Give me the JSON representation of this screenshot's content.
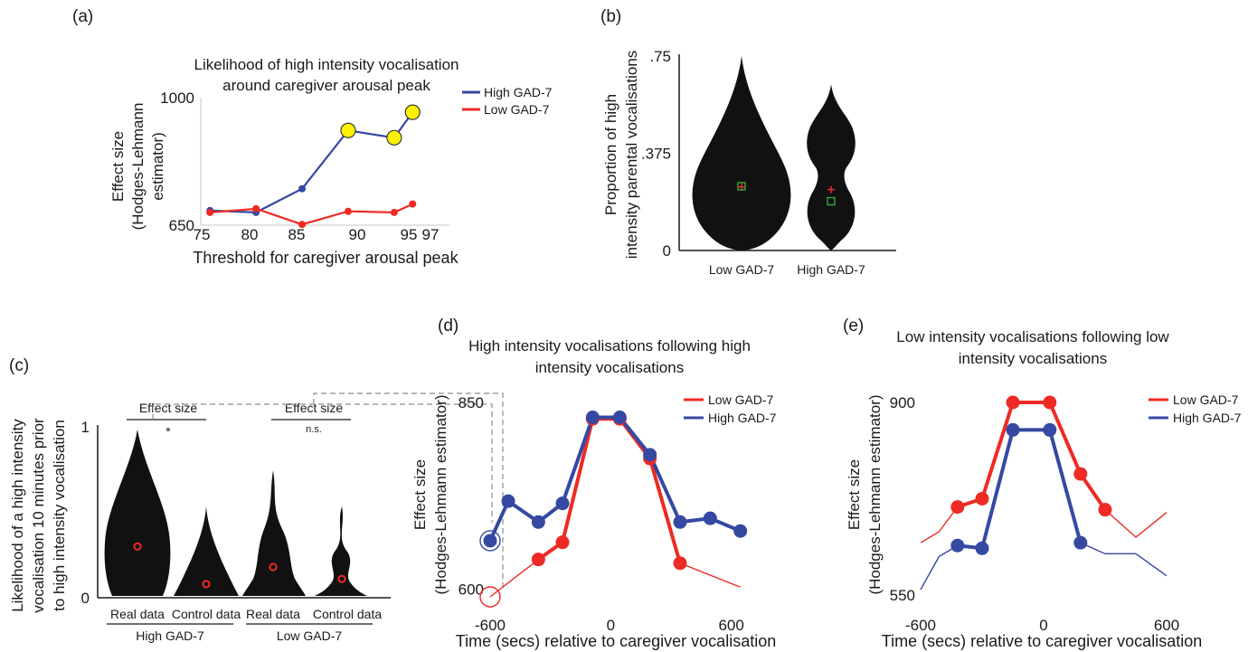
{
  "colors": {
    "red": "#ee2a24",
    "blue": "#3548a2",
    "yellow": "#fff200",
    "black": "#111111",
    "green": "#3da53b"
  },
  "chart_data": [
    {
      "panel": "(a)",
      "type": "line",
      "title": "Likelihood of high intensity vocalisation around caregiver arousal peak",
      "title_lines": [
        "Likelihood of high intensity vocalisation",
        "around caregiver arousal peak"
      ],
      "xlabel": "Threshold for caregiver arousal peak",
      "ylabel": "Effect size (Hodges-Lehmann estimator)",
      "ylabel_lines": [
        "Effect size",
        "(Hodges-Lehmann",
        "estimator)"
      ],
      "xticks": [
        75,
        80,
        85,
        90,
        95,
        97
      ],
      "yticks": [
        650,
        1000
      ],
      "xlim": [
        74,
        101
      ],
      "ylim": [
        650,
        1000
      ],
      "legend_position": "top-right",
      "x": [
        75,
        80,
        85,
        90,
        95,
        97
      ],
      "series": [
        {
          "name": "High GAD-7",
          "color": "#3548a2",
          "values": [
            690,
            685,
            750,
            910,
            890,
            960
          ],
          "highlighted": [
            false,
            false,
            false,
            true,
            true,
            true
          ]
        },
        {
          "name": "Low GAD-7",
          "color": "#ee2a24",
          "values": [
            685,
            695,
            652,
            688,
            685,
            708
          ]
        }
      ],
      "highlight_color": "#fff200"
    },
    {
      "panel": "(b)",
      "type": "violin",
      "ylabel": "Proportion of high intensity parental vocalisations",
      "ylabel_lines": [
        "Proportion of high",
        "intensity parental vocalisations"
      ],
      "categories": [
        "Low GAD-7",
        "High GAD-7"
      ],
      "yticks": [
        0,
        0.375,
        0.75
      ],
      "ytick_labels": [
        "0",
        ".375",
        ".75"
      ],
      "ylim": [
        0,
        0.75
      ],
      "mean": [
        0.245,
        0.235
      ],
      "median": [
        0.248,
        0.19
      ]
    },
    {
      "panel": "(c)",
      "type": "violin",
      "ylabel": "Likelihood of a high intensity vocalisation 10 minutes prior to high intensity vocalisation",
      "ylabel_lines": [
        "Likelihood of a high intensity",
        "vocalisation 10 minutes prior",
        "to high intensity vocalisation"
      ],
      "categories": [
        "Real data",
        "Control data",
        "Real data",
        "Control data"
      ],
      "groups": [
        "High GAD-7",
        "Low GAD-7"
      ],
      "yticks": [
        0,
        1
      ],
      "ylim": [
        0,
        1
      ],
      "median": [
        0.3,
        0.08,
        0.18,
        0.11
      ],
      "comparisons": [
        {
          "label": "Effect size",
          "result": "*"
        },
        {
          "label": "Effect size",
          "result": "n.s."
        }
      ]
    },
    {
      "panel": "(d)",
      "type": "line",
      "title": "High intensity vocalisations following high intensity vocalisations",
      "title_lines": [
        "High intensity vocalisations following high",
        "intensity vocalisations"
      ],
      "xlabel": "Time (secs) relative to caregiver vocalisation",
      "ylabel": "Effect size (Hodges-Lehmann estimator)",
      "ylabel_lines": [
        "Effect size",
        "(Hodges-Lehmann estimator)"
      ],
      "xticks": [
        -600,
        0,
        600
      ],
      "yticks": [
        600,
        850
      ],
      "xlim": [
        -600,
        660
      ],
      "ylim": [
        590,
        850
      ],
      "legend_position": "top-right",
      "series": [
        {
          "name": "Low GAD-7",
          "color": "#ee2a24",
          "x": [
            -600,
            -360,
            -240,
            -90,
            45,
            195,
            345,
            645
          ],
          "values": [
            590,
            640,
            663,
            828,
            828,
            775,
            635,
            603
          ],
          "markers": [
            false,
            true,
            true,
            true,
            true,
            true,
            true,
            false
          ],
          "circled_point": -600
        },
        {
          "name": "High GAD-7",
          "color": "#3548a2",
          "x": [
            -600,
            -510,
            -360,
            -240,
            -90,
            45,
            195,
            345,
            495,
            645
          ],
          "values": [
            665,
            718,
            690,
            715,
            830,
            830,
            780,
            690,
            695,
            678
          ],
          "markers": [
            true,
            true,
            true,
            true,
            true,
            true,
            true,
            true,
            true,
            true
          ],
          "circled_point": -600
        }
      ]
    },
    {
      "panel": "(e)",
      "type": "line",
      "title": "Low intensity vocalisations following low intensity vocalisations",
      "title_lines": [
        "Low intensity vocalisations following low",
        "intensity vocalisations"
      ],
      "xlabel": "Time (secs) relative to caregiver vocalisation",
      "ylabel": "Effect size (Hodges-Lehmann estimator)",
      "ylabel_lines": [
        "Effect size",
        "(Hodges-Lehmann estimator)"
      ],
      "xticks": [
        -600,
        0,
        600
      ],
      "yticks": [
        550,
        900
      ],
      "xlim": [
        -600,
        600
      ],
      "ylim": [
        550,
        900
      ],
      "legend_position": "top-right",
      "series": [
        {
          "name": "Low GAD-7",
          "color": "#ee2a24",
          "x": [
            -600,
            -510,
            -420,
            -300,
            -150,
            30,
            180,
            300,
            450,
            600
          ],
          "values": [
            645,
            665,
            710,
            725,
            900,
            900,
            770,
            705,
            655,
            700
          ],
          "markers": [
            false,
            false,
            true,
            true,
            true,
            true,
            true,
            true,
            false,
            false
          ]
        },
        {
          "name": "High GAD-7",
          "color": "#3548a2",
          "x": [
            -600,
            -510,
            -420,
            -300,
            -150,
            30,
            180,
            300,
            450,
            600
          ],
          "values": [
            560,
            620,
            640,
            635,
            850,
            850,
            645,
            625,
            625,
            585
          ],
          "markers": [
            false,
            false,
            true,
            true,
            true,
            true,
            true,
            false,
            false,
            false
          ]
        }
      ]
    }
  ]
}
